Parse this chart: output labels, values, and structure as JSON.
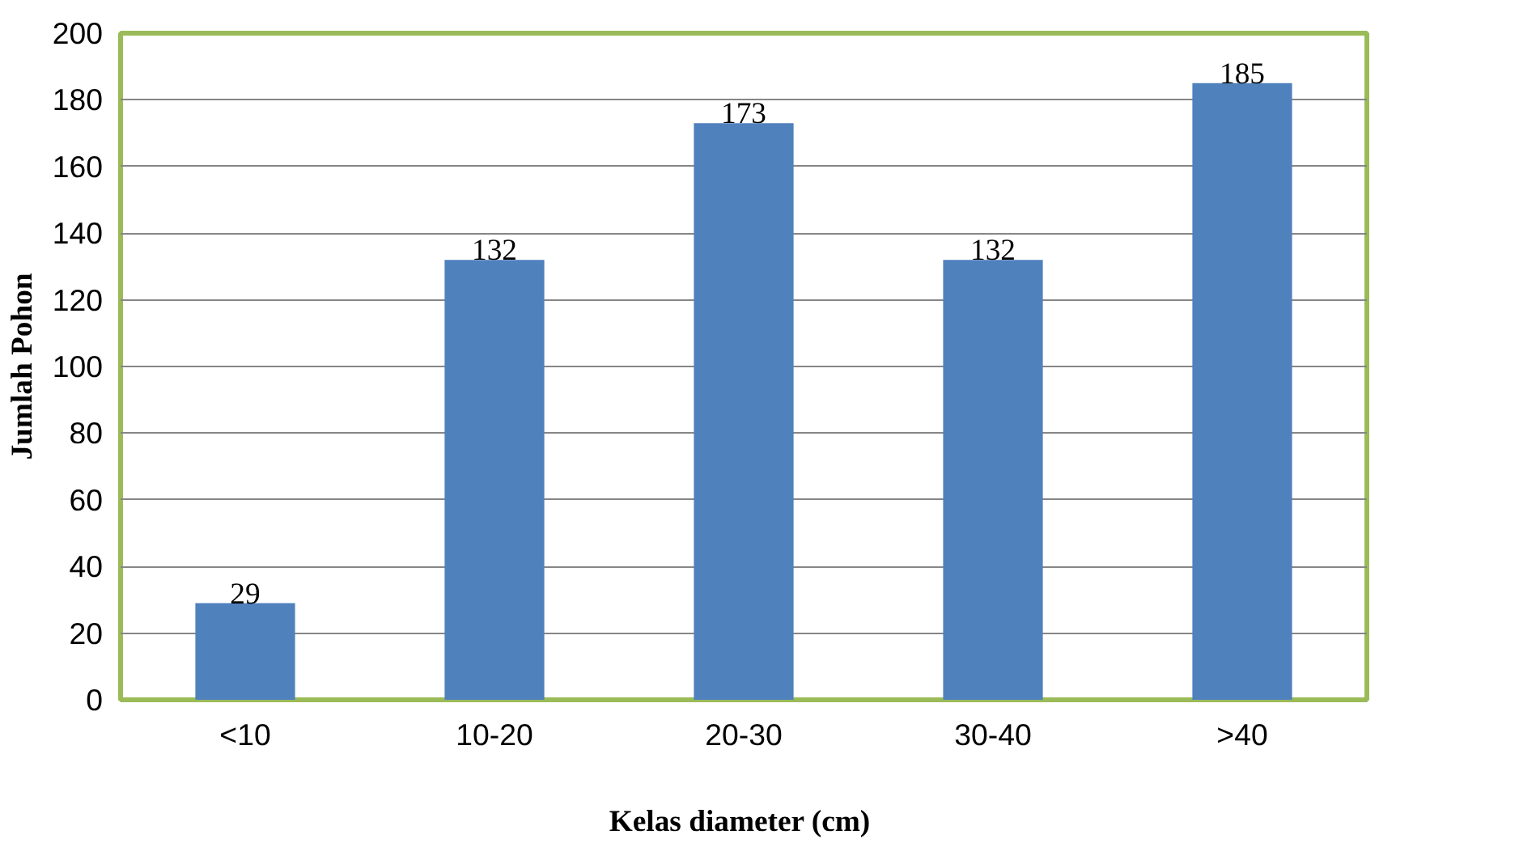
{
  "chart_data": {
    "type": "bar",
    "xlabel": "Kelas  diameter (cm)",
    "ylabel": "Jumlah Pohon",
    "categories": [
      "<10",
      "10-20",
      "20-30",
      "30-40",
      ">40"
    ],
    "values": [
      29,
      132,
      173,
      132,
      185
    ],
    "color": "#4f81bd",
    "ylim": [
      0,
      200
    ],
    "yticks": [
      0,
      20,
      40,
      60,
      80,
      100,
      120,
      140,
      160,
      180,
      200
    ],
    "grid": "y",
    "data_labels": true
  }
}
